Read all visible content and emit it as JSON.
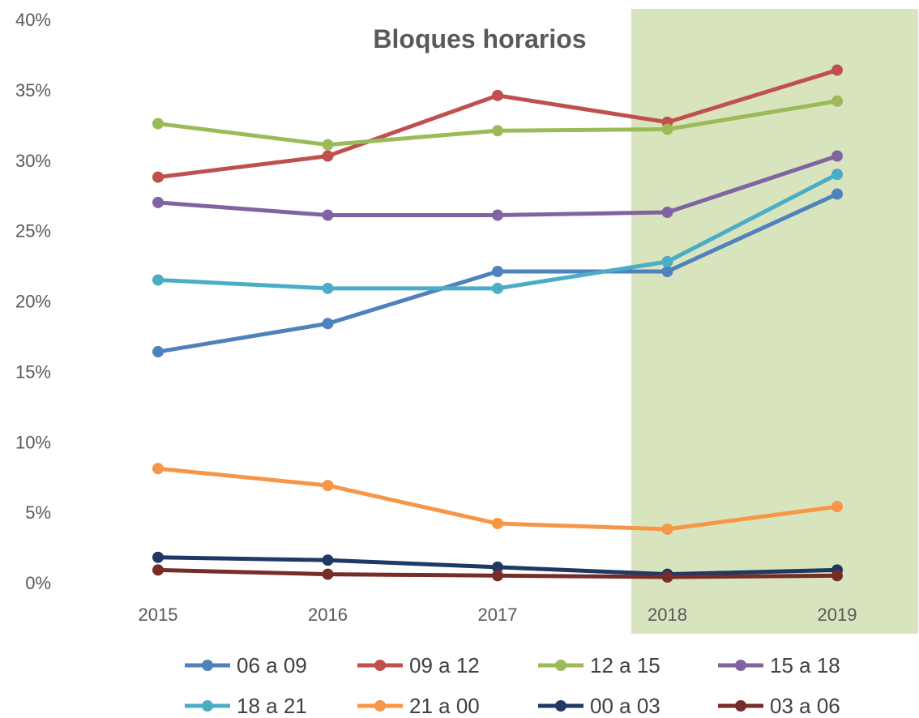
{
  "chart_data": {
    "type": "line",
    "title": "Bloques horarios",
    "xlabel": "",
    "ylabel": "",
    "categories": [
      "2015",
      "2016",
      "2017",
      "2018",
      "2019"
    ],
    "ylim": [
      0,
      40
    ],
    "y_ticks": [
      "0%",
      "5%",
      "10%",
      "15%",
      "20%",
      "25%",
      "30%",
      "35%",
      "40%"
    ],
    "y_tick_values": [
      0,
      5,
      10,
      15,
      20,
      25,
      30,
      35,
      40
    ],
    "highlight": {
      "from_category": "2018",
      "to_category": "2019",
      "color": "#d7e4bd"
    },
    "grid": false,
    "legend_position": "bottom",
    "series": [
      {
        "name": "06 a 09",
        "color": "#4f81bd",
        "values": [
          16.4,
          18.4,
          22.1,
          22.1,
          27.6
        ]
      },
      {
        "name": "09 a 12",
        "color": "#c0504d",
        "values": [
          28.8,
          30.3,
          34.6,
          32.7,
          36.4
        ]
      },
      {
        "name": "12 a 15",
        "color": "#9bbb59",
        "values": [
          32.6,
          31.1,
          32.1,
          32.2,
          34.2
        ]
      },
      {
        "name": "15 a 18",
        "color": "#8064a2",
        "values": [
          27.0,
          26.1,
          26.1,
          26.3,
          30.3
        ]
      },
      {
        "name": "18 a 21",
        "color": "#4bacc6",
        "values": [
          21.5,
          20.9,
          20.9,
          22.8,
          29.0
        ]
      },
      {
        "name": "21 a 00",
        "color": "#f79646",
        "values": [
          8.1,
          6.9,
          4.2,
          3.8,
          5.4
        ]
      },
      {
        "name": "00 a 03",
        "color": "#1f3864",
        "values": [
          1.8,
          1.6,
          1.1,
          0.6,
          0.9
        ]
      },
      {
        "name": "03 a 06",
        "color": "#772c2a",
        "values": [
          0.9,
          0.6,
          0.5,
          0.4,
          0.5
        ]
      }
    ]
  }
}
